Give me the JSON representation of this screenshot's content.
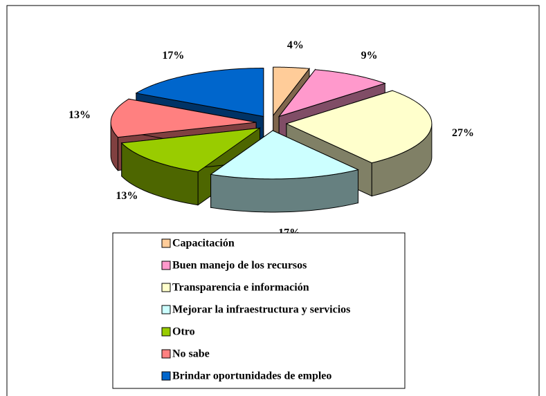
{
  "chart_data": {
    "type": "pie3d",
    "categories": [
      "Capacitación",
      "Buen manejo de los recursos",
      "Transparencia e información",
      "Mejorar la infraestructura y servicios",
      "Otro",
      "No sabe",
      "Brindar oportunidades de empleo"
    ],
    "values": [
      4,
      9,
      27,
      17,
      13,
      13,
      17
    ],
    "value_labels": [
      "4%",
      "9%",
      "27%",
      "17%",
      "13%",
      "13%",
      "17%"
    ],
    "colors": [
      "#FFCC99",
      "#FF99CC",
      "#FFFFCC",
      "#CCFFFF",
      "#99CC00",
      "#FF8080",
      "#0066CC"
    ],
    "legend": "bottom"
  }
}
